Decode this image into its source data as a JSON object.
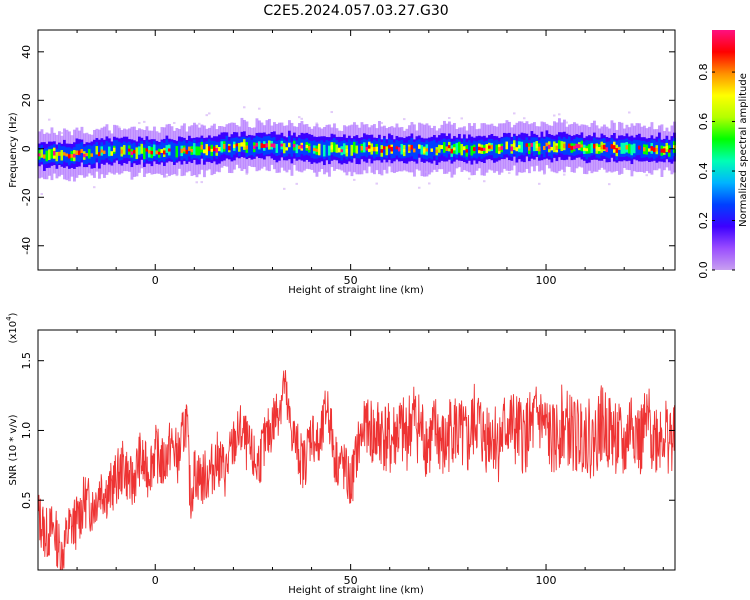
{
  "figure": {
    "title": "C2E5.2024.057.03.27.G30"
  },
  "chart_data": [
    {
      "type": "heatmap",
      "xlabel": "Height of straight line (km)",
      "ylabel": "Frequency (Hz)",
      "xlim": [
        -30,
        133
      ],
      "ylim": [
        -50,
        49
      ],
      "xticks": [
        0,
        50,
        100
      ],
      "yticks": [
        -40,
        -20,
        0,
        20,
        40
      ],
      "colorbar": {
        "label": "Normalized spectral amplitude",
        "range": [
          0.0,
          0.97
        ],
        "ticks": [
          0.0,
          0.2,
          0.4,
          0.6,
          0.8
        ],
        "colormap": [
          "#c8a0f0",
          "#9a4dff",
          "#3c00ff",
          "#0040ff",
          "#00b4ff",
          "#00ffb4",
          "#00ff00",
          "#b4ff00",
          "#ffff00",
          "#ff9000",
          "#ff0000",
          "#ff1080"
        ]
      },
      "ridge": {
        "x": [
          -30,
          -20,
          -10,
          0,
          10,
          20,
          30,
          40,
          50,
          60,
          70,
          80,
          90,
          100,
          110,
          120,
          133
        ],
        "y": [
          -2.5,
          -2.0,
          -1.0,
          -1.0,
          -0.5,
          1.0,
          1.0,
          0.0,
          0.0,
          0.0,
          0.0,
          0.0,
          0.5,
          1.0,
          0.5,
          0.0,
          0.0
        ],
        "halfwidth": 5
      }
    },
    {
      "type": "line",
      "xlabel": "Height of straight line (km)",
      "ylabel": "SNR (10 * v/v)",
      "yscale_label": "(x10",
      "yscale_exp": "4",
      "xlim": [
        -30,
        133
      ],
      "ylim": [
        0.0,
        1.72
      ],
      "xticks": [
        0,
        50,
        100
      ],
      "yticks": [
        0.5,
        1.0,
        1.5
      ],
      "color": "#ee3333",
      "series": [
        {
          "x": [
            -30,
            -28,
            -26,
            -24,
            -22,
            -20,
            -18,
            -16,
            -14,
            -12,
            -10,
            -8,
            -6,
            -4,
            -2,
            0,
            2,
            4,
            6,
            8,
            9,
            10,
            12,
            14,
            16,
            18,
            20,
            22,
            24,
            26,
            28,
            30,
            32,
            33,
            34,
            36,
            38,
            40,
            42,
            44,
            46,
            48,
            50,
            52,
            54,
            56,
            58,
            60,
            62,
            64,
            66,
            68,
            70,
            72,
            74,
            76,
            78,
            80,
            82,
            84,
            86,
            88,
            90,
            92,
            94,
            96,
            98,
            100,
            102,
            104,
            106,
            108,
            110,
            112,
            114,
            116,
            118,
            120,
            122,
            124,
            126,
            128,
            130,
            133
          ],
          "y": [
            0.4,
            0.25,
            0.3,
            0.1,
            0.3,
            0.35,
            0.5,
            0.45,
            0.6,
            0.55,
            0.65,
            0.75,
            0.6,
            0.8,
            0.7,
            0.85,
            0.75,
            0.9,
            0.8,
            1.1,
            0.5,
            0.7,
            0.65,
            0.7,
            0.8,
            0.7,
            0.9,
            1.0,
            0.85,
            0.75,
            0.9,
            1.05,
            1.2,
            1.35,
            1.1,
            0.9,
            0.75,
            1.0,
            0.85,
            1.2,
            0.8,
            0.75,
            0.6,
            0.9,
            1.05,
            0.95,
            1.0,
            0.9,
            1.0,
            0.95,
            1.1,
            1.0,
            0.9,
            1.0,
            0.85,
            1.05,
            0.95,
            0.9,
            1.1,
            0.95,
            1.0,
            0.9,
            1.05,
            1.0,
            0.95,
            1.0,
            1.1,
            1.0,
            0.9,
            1.05,
            1.0,
            0.95,
            1.0,
            0.9,
            1.05,
            1.0,
            0.95,
            0.85,
            1.1,
            0.9,
            1.05,
            0.95,
            1.0,
            0.9
          ]
        }
      ]
    }
  ]
}
